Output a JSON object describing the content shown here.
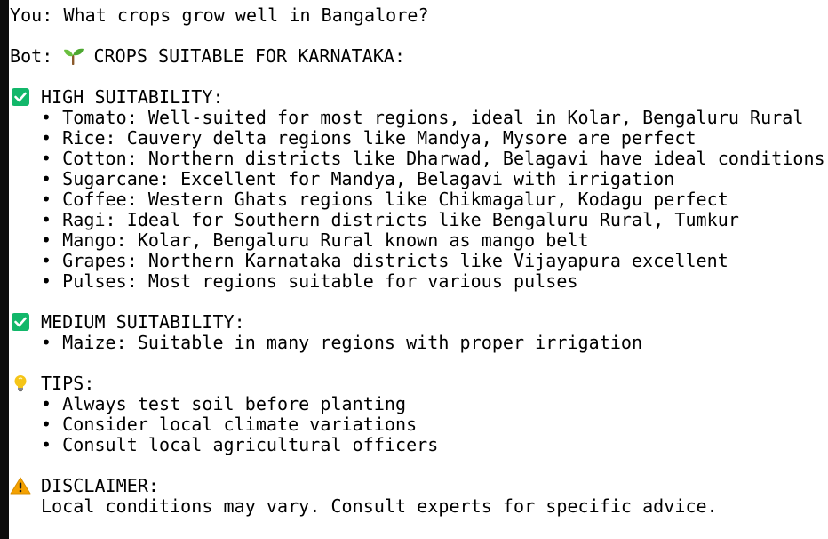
{
  "conversation": {
    "user_line": "You: What crops grow well in Bangalore?",
    "bot_prefix": "Bot:",
    "bot_heading_icon": "seedling-icon",
    "bot_heading": "CROPS SUITABLE FOR KARNATAKA:",
    "high": {
      "icon": "check-box-icon",
      "heading": "HIGH SUITABILITY:",
      "items": [
        "• Tomato: Well-suited for most regions, ideal in Kolar, Bengaluru Rural",
        "• Rice: Cauvery delta regions like Mandya, Mysore are perfect",
        "• Cotton: Northern districts like Dharwad, Belagavi have ideal conditions",
        "• Sugarcane: Excellent for Mandya, Belagavi with irrigation",
        "• Coffee: Western Ghats regions like Chikmagalur, Kodagu perfect",
        "• Ragi: Ideal for Southern districts like Bengaluru Rural, Tumkur",
        "• Mango: Kolar, Bengaluru Rural known as mango belt",
        "• Grapes: Northern Karnataka districts like Vijayapura excellent",
        "• Pulses: Most regions suitable for various pulses"
      ]
    },
    "medium": {
      "icon": "check-box-icon",
      "heading": "MEDIUM SUITABILITY:",
      "items": [
        "• Maize: Suitable in many regions with proper irrigation"
      ]
    },
    "tips": {
      "icon": "lightbulb-icon",
      "heading": "TIPS:",
      "items": [
        "• Always test soil before planting",
        "• Consider local climate variations",
        "• Consult local agricultural officers"
      ]
    },
    "disclaimer": {
      "icon": "warning-icon",
      "heading": "DISCLAIMER:",
      "text": "Local conditions may vary. Consult experts for specific advice."
    }
  },
  "colors": {
    "text": "#000000",
    "background": "#ffffff",
    "left_bar": "#0c0c0c",
    "check_green": "#12b76a",
    "bulb_yellow": "#f5c518",
    "warning_orange": "#f4a100",
    "seedling_green": "#6abf3f",
    "seedling_brown": "#8b5a2b"
  }
}
